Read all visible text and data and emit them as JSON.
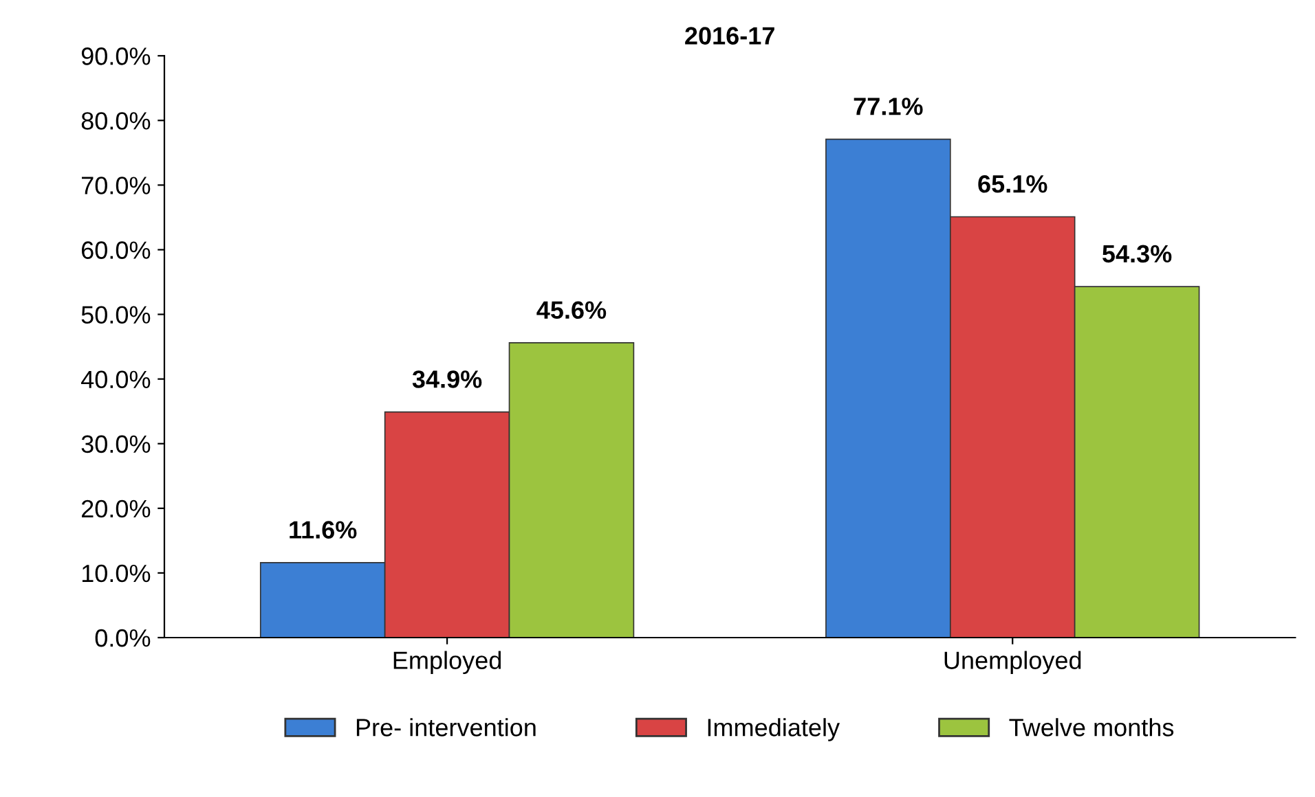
{
  "chart_data": {
    "type": "bar",
    "title": "2016-17",
    "categories": [
      "Employed",
      "Unemployed"
    ],
    "series": [
      {
        "name": "Pre- intervention",
        "color": "#3c7fd4",
        "values": [
          11.6,
          77.1
        ],
        "value_labels": [
          "11.6%",
          "77.1%"
        ]
      },
      {
        "name": "Immediately",
        "color": "#d94444",
        "values": [
          34.9,
          65.1
        ],
        "value_labels": [
          "34.9%",
          "65.1%"
        ]
      },
      {
        "name": "Twelve months",
        "color": "#9cc43f",
        "values": [
          45.6,
          54.3
        ],
        "value_labels": [
          "45.6%",
          "54.3%"
        ]
      }
    ],
    "ylim": [
      0,
      90
    ],
    "yticks": [
      {
        "value": 0,
        "label": "0.0%"
      },
      {
        "value": 10,
        "label": "10.0%"
      },
      {
        "value": 20,
        "label": "20.0%"
      },
      {
        "value": 30,
        "label": "30.0%"
      },
      {
        "value": 40,
        "label": "40.0%"
      },
      {
        "value": 50,
        "label": "50.0%"
      },
      {
        "value": 60,
        "label": "60.0%"
      },
      {
        "value": 70,
        "label": "70.0%"
      },
      {
        "value": 80,
        "label": "80.0%"
      },
      {
        "value": 90,
        "label": "90.0%"
      }
    ],
    "grid": false,
    "legend": "bottom"
  }
}
